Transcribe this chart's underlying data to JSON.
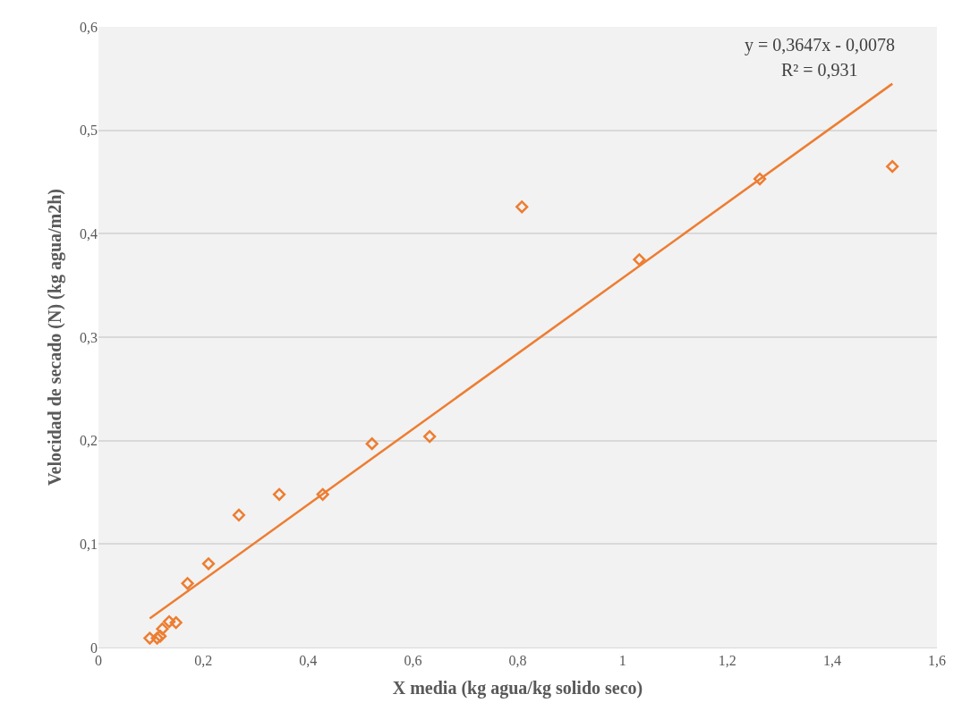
{
  "chart_data": {
    "type": "scatter",
    "xlabel": "X media (kg agua/kg solido seco)",
    "ylabel": "Velocidad de secado (N) (kg agua/m2h)",
    "series": [
      {
        "type": "scatter",
        "color": "#ed7d31",
        "marker": "diamond",
        "x": [
          0.098,
          0.112,
          0.118,
          0.122,
          0.135,
          0.148,
          0.17,
          0.21,
          0.268,
          0.345,
          0.428,
          0.522,
          0.632,
          0.808,
          1.032,
          1.262,
          1.515
        ],
        "values": [
          0.009,
          0.009,
          0.011,
          0.018,
          0.025,
          0.024,
          0.062,
          0.081,
          0.128,
          0.148,
          0.148,
          0.197,
          0.204,
          0.426,
          0.375,
          0.453,
          0.465
        ]
      },
      {
        "type": "line",
        "color": "#ed7d31",
        "marker": "none",
        "x": [
          0.098,
          1.515
        ],
        "values": [
          0.028,
          0.545
        ]
      }
    ],
    "annotations": [
      "y = 0,3647x - 0,0078",
      "R² = 0,931"
    ],
    "xlim": [
      0,
      1.6
    ],
    "xticks": [
      {
        "value": 0,
        "label": "0"
      },
      {
        "value": 0.2,
        "label": "0,2"
      },
      {
        "value": 0.4,
        "label": "0,4"
      },
      {
        "value": 0.6,
        "label": "0,6"
      },
      {
        "value": 0.8,
        "label": "0,8"
      },
      {
        "value": 1,
        "label": "1"
      },
      {
        "value": 1.2,
        "label": "1,2"
      },
      {
        "value": 1.4,
        "label": "1,4"
      },
      {
        "value": 1.6,
        "label": "1,6"
      }
    ],
    "ylim": [
      0,
      0.6
    ],
    "yticks": [
      {
        "value": 0,
        "label": "0"
      },
      {
        "value": 0.1,
        "label": "0,1"
      },
      {
        "value": 0.2,
        "label": "0,2"
      },
      {
        "value": 0.3,
        "label": "0,3"
      },
      {
        "value": 0.4,
        "label": "0,4"
      },
      {
        "value": 0.5,
        "label": "0,5"
      },
      {
        "value": 0.6,
        "label": "0,6"
      }
    ],
    "grid": "y"
  }
}
